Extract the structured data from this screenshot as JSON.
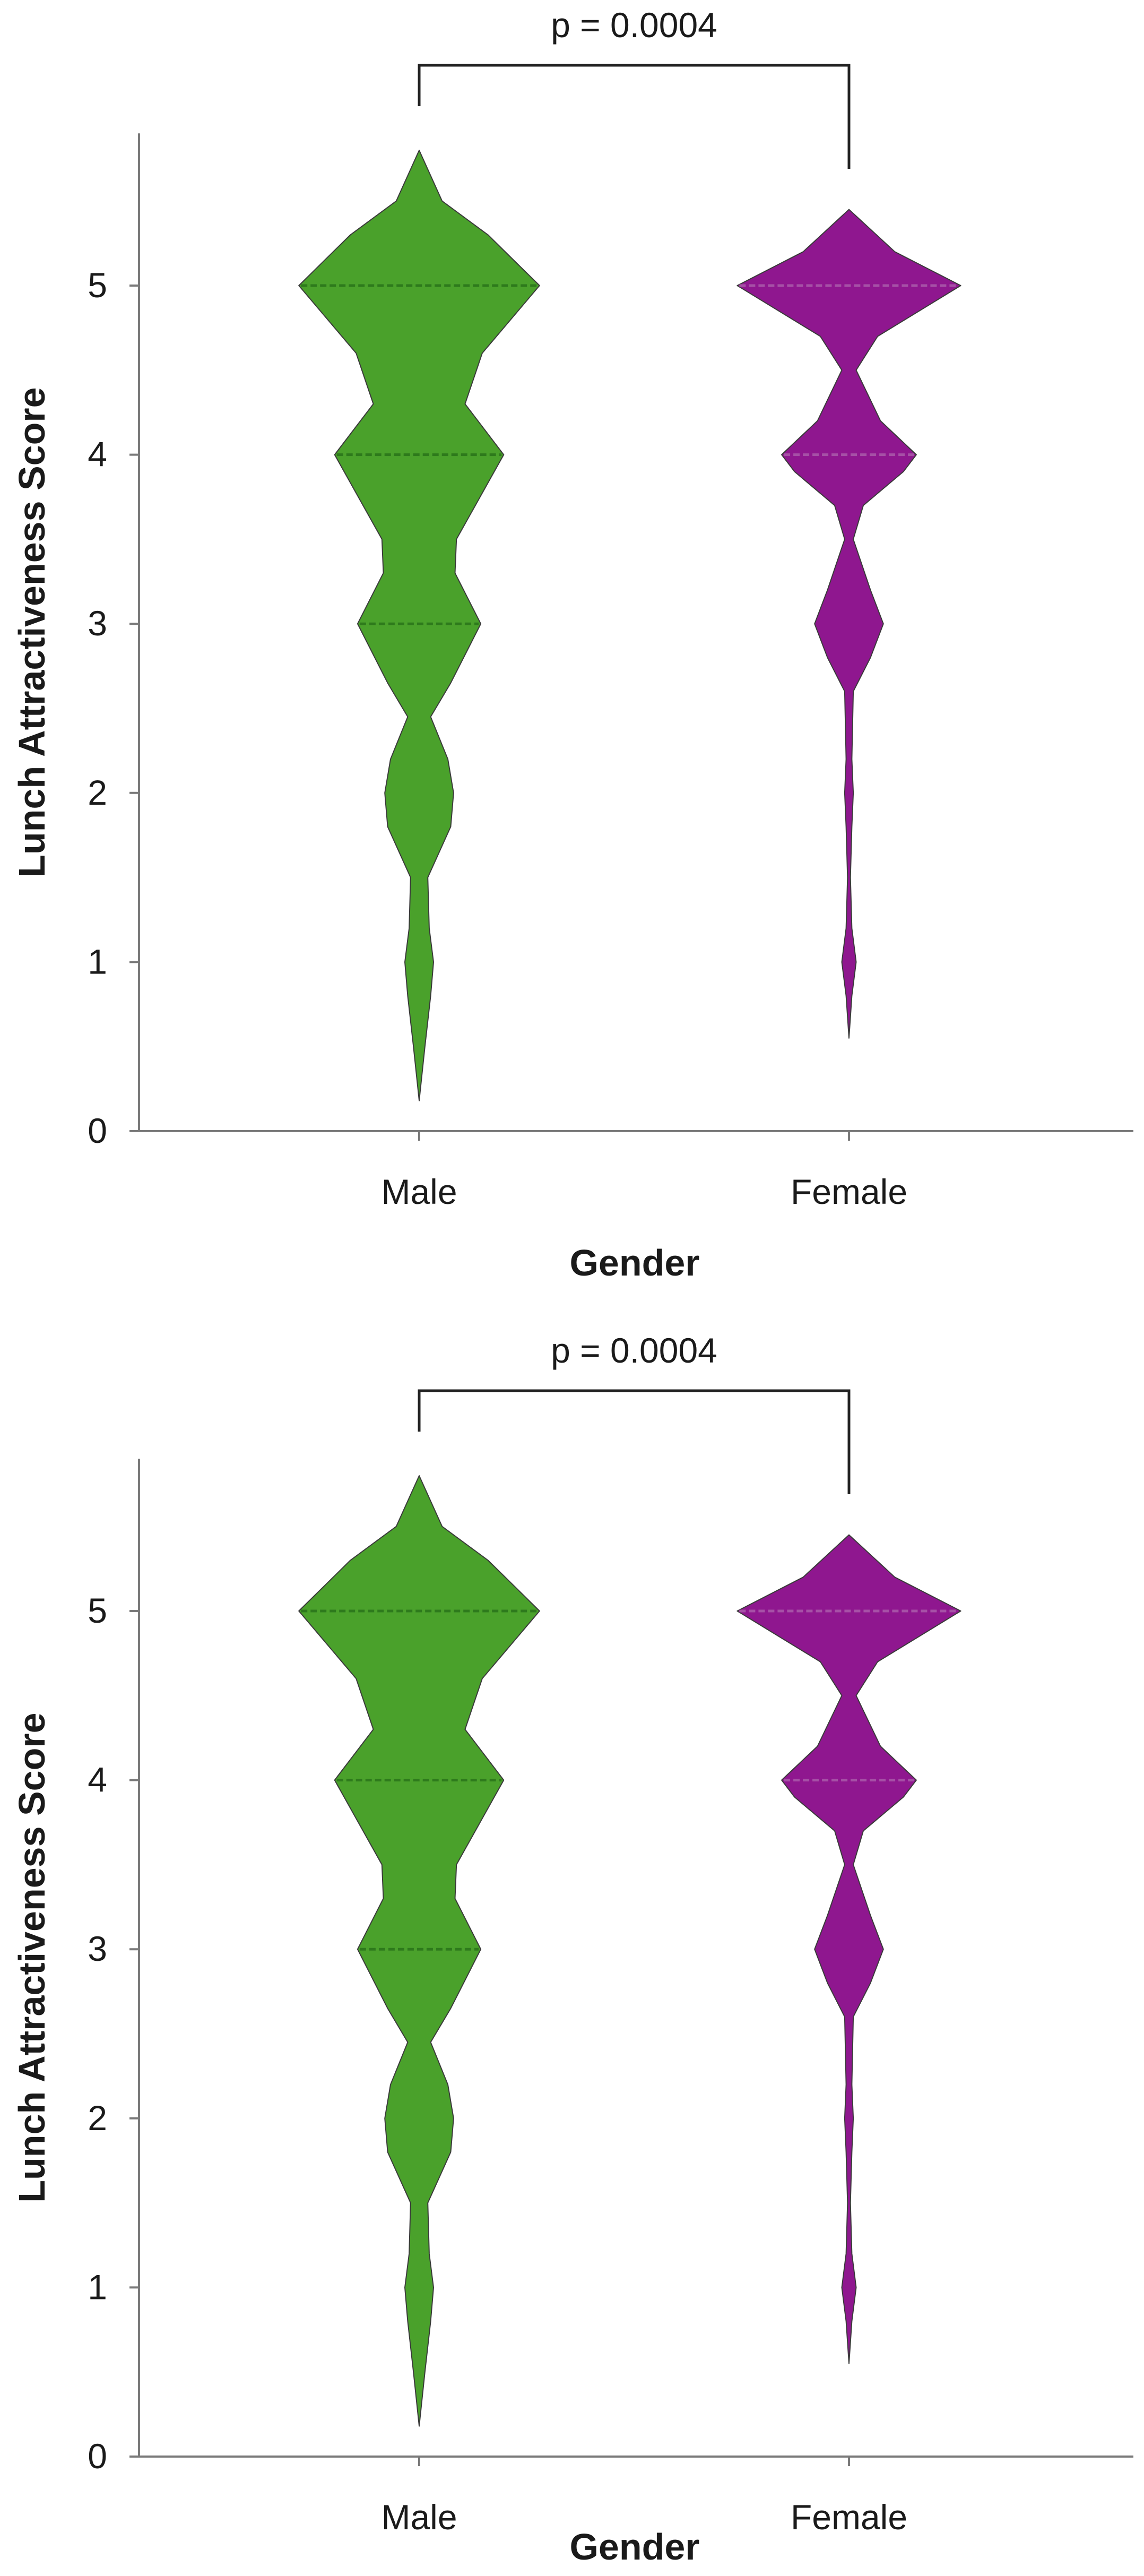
{
  "chart_data": [
    {
      "type": "violin",
      "title": "",
      "xlabel": "Gender",
      "ylabel": "Lunch Attractiveness Score",
      "ylim": [
        0,
        5.9
      ],
      "yticks": [
        0,
        1,
        2,
        3,
        4,
        5
      ],
      "categories": [
        "Male",
        "Female"
      ],
      "colors": [
        "#4aa12b",
        "#8f178f"
      ],
      "quartile_line_colors": [
        "#2e7a1c",
        "#a650a6"
      ],
      "significance": {
        "label": "p = 0.0004",
        "between": [
          "Male",
          "Female"
        ]
      },
      "series": [
        {
          "name": "Male",
          "range": [
            0.18,
            5.8
          ],
          "density": [
            {
              "y": 0.18,
              "w": 0.0
            },
            {
              "y": 0.5,
              "w": 0.04
            },
            {
              "y": 0.8,
              "w": 0.08
            },
            {
              "y": 1.0,
              "w": 0.1
            },
            {
              "y": 1.2,
              "w": 0.07
            },
            {
              "y": 1.5,
              "w": 0.06
            },
            {
              "y": 1.8,
              "w": 0.22
            },
            {
              "y": 2.0,
              "w": 0.24
            },
            {
              "y": 2.2,
              "w": 0.2
            },
            {
              "y": 2.45,
              "w": 0.08
            },
            {
              "y": 2.65,
              "w": 0.22
            },
            {
              "y": 3.0,
              "w": 0.43
            },
            {
              "y": 3.3,
              "w": 0.25
            },
            {
              "y": 3.5,
              "w": 0.26
            },
            {
              "y": 4.0,
              "w": 0.59
            },
            {
              "y": 4.3,
              "w": 0.32
            },
            {
              "y": 4.6,
              "w": 0.44
            },
            {
              "y": 5.0,
              "w": 0.84
            },
            {
              "y": 5.3,
              "w": 0.48
            },
            {
              "y": 5.5,
              "w": 0.16
            },
            {
              "y": 5.8,
              "w": 0.0
            }
          ],
          "quartiles": [
            3.0,
            4.0,
            5.0
          ],
          "median": 4.0
        },
        {
          "name": "Female",
          "range": [
            0.55,
            5.45
          ],
          "density": [
            {
              "y": 0.55,
              "w": 0.0
            },
            {
              "y": 0.8,
              "w": 0.02
            },
            {
              "y": 1.0,
              "w": 0.05
            },
            {
              "y": 1.2,
              "w": 0.02
            },
            {
              "y": 1.5,
              "w": 0.01
            },
            {
              "y": 1.8,
              "w": 0.02
            },
            {
              "y": 2.0,
              "w": 0.03
            },
            {
              "y": 2.2,
              "w": 0.02
            },
            {
              "y": 2.6,
              "w": 0.03
            },
            {
              "y": 2.8,
              "w": 0.15
            },
            {
              "y": 3.0,
              "w": 0.24
            },
            {
              "y": 3.2,
              "w": 0.15
            },
            {
              "y": 3.5,
              "w": 0.03
            },
            {
              "y": 3.7,
              "w": 0.1
            },
            {
              "y": 3.9,
              "w": 0.38
            },
            {
              "y": 4.0,
              "w": 0.47
            },
            {
              "y": 4.2,
              "w": 0.22
            },
            {
              "y": 4.5,
              "w": 0.05
            },
            {
              "y": 4.7,
              "w": 0.2
            },
            {
              "y": 5.0,
              "w": 0.78
            },
            {
              "y": 5.2,
              "w": 0.32
            },
            {
              "y": 5.45,
              "w": 0.0
            }
          ],
          "quartiles": [
            4.0,
            5.0
          ],
          "median": 4.0
        }
      ]
    },
    {
      "type": "violin",
      "title": "",
      "xlabel": "Gender",
      "ylabel": "Lunch Attractiveness Score",
      "ylim": [
        0,
        5.9
      ],
      "yticks": [
        0,
        1,
        2,
        3,
        4,
        5
      ],
      "categories": [
        "Male",
        "Female"
      ],
      "colors": [
        "#4aa12b",
        "#8f178f"
      ],
      "quartile_line_colors": [
        "#2e7a1c",
        "#a650a6"
      ],
      "significance": {
        "label": "p = 0.0004",
        "between": [
          "Male",
          "Female"
        ]
      },
      "series": [
        {
          "name": "Male",
          "range": [
            0.18,
            5.8
          ],
          "density": [
            {
              "y": 0.18,
              "w": 0.0
            },
            {
              "y": 0.5,
              "w": 0.04
            },
            {
              "y": 0.8,
              "w": 0.08
            },
            {
              "y": 1.0,
              "w": 0.1
            },
            {
              "y": 1.2,
              "w": 0.07
            },
            {
              "y": 1.5,
              "w": 0.06
            },
            {
              "y": 1.8,
              "w": 0.22
            },
            {
              "y": 2.0,
              "w": 0.24
            },
            {
              "y": 2.2,
              "w": 0.2
            },
            {
              "y": 2.45,
              "w": 0.08
            },
            {
              "y": 2.65,
              "w": 0.22
            },
            {
              "y": 3.0,
              "w": 0.43
            },
            {
              "y": 3.3,
              "w": 0.25
            },
            {
              "y": 3.5,
              "w": 0.26
            },
            {
              "y": 4.0,
              "w": 0.59
            },
            {
              "y": 4.3,
              "w": 0.32
            },
            {
              "y": 4.6,
              "w": 0.44
            },
            {
              "y": 5.0,
              "w": 0.84
            },
            {
              "y": 5.3,
              "w": 0.48
            },
            {
              "y": 5.5,
              "w": 0.16
            },
            {
              "y": 5.8,
              "w": 0.0
            }
          ],
          "quartiles": [
            3.0,
            4.0,
            5.0
          ],
          "median": 4.0
        },
        {
          "name": "Female",
          "range": [
            0.55,
            5.45
          ],
          "density": [
            {
              "y": 0.55,
              "w": 0.0
            },
            {
              "y": 0.8,
              "w": 0.02
            },
            {
              "y": 1.0,
              "w": 0.05
            },
            {
              "y": 1.2,
              "w": 0.02
            },
            {
              "y": 1.5,
              "w": 0.01
            },
            {
              "y": 1.8,
              "w": 0.02
            },
            {
              "y": 2.0,
              "w": 0.03
            },
            {
              "y": 2.2,
              "w": 0.02
            },
            {
              "y": 2.6,
              "w": 0.03
            },
            {
              "y": 2.8,
              "w": 0.15
            },
            {
              "y": 3.0,
              "w": 0.24
            },
            {
              "y": 3.2,
              "w": 0.15
            },
            {
              "y": 3.5,
              "w": 0.03
            },
            {
              "y": 3.7,
              "w": 0.1
            },
            {
              "y": 3.9,
              "w": 0.38
            },
            {
              "y": 4.0,
              "w": 0.47
            },
            {
              "y": 4.2,
              "w": 0.22
            },
            {
              "y": 4.5,
              "w": 0.05
            },
            {
              "y": 4.7,
              "w": 0.2
            },
            {
              "y": 5.0,
              "w": 0.78
            },
            {
              "y": 5.2,
              "w": 0.32
            },
            {
              "y": 5.45,
              "w": 0.0
            }
          ],
          "quartiles": [
            4.0,
            5.0
          ],
          "median": 4.0
        }
      ]
    }
  ]
}
